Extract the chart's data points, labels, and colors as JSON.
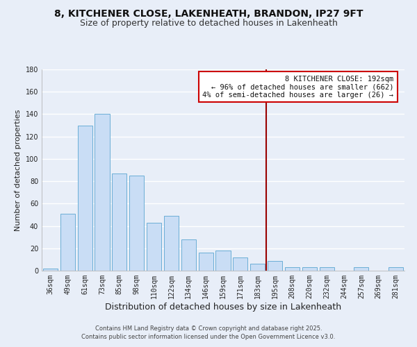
{
  "title": "8, KITCHENER CLOSE, LAKENHEATH, BRANDON, IP27 9FT",
  "subtitle": "Size of property relative to detached houses in Lakenheath",
  "xlabel": "Distribution of detached houses by size in Lakenheath",
  "ylabel": "Number of detached properties",
  "bar_labels": [
    "36sqm",
    "49sqm",
    "61sqm",
    "73sqm",
    "85sqm",
    "98sqm",
    "110sqm",
    "122sqm",
    "134sqm",
    "146sqm",
    "159sqm",
    "171sqm",
    "183sqm",
    "195sqm",
    "208sqm",
    "220sqm",
    "232sqm",
    "244sqm",
    "257sqm",
    "269sqm",
    "281sqm"
  ],
  "bar_values": [
    2,
    51,
    130,
    140,
    87,
    85,
    43,
    49,
    28,
    16,
    18,
    12,
    6,
    9,
    3,
    3,
    3,
    0,
    3,
    0,
    3
  ],
  "bar_color": "#c9ddf5",
  "bar_edge_color": "#6baed6",
  "background_color": "#e8eef8",
  "grid_color": "#ffffff",
  "vline_x_index": 13,
  "vline_color": "#990000",
  "annotation_title": "8 KITCHENER CLOSE: 192sqm",
  "annotation_line1": "← 96% of detached houses are smaller (662)",
  "annotation_line2": "4% of semi-detached houses are larger (26) →",
  "annotation_box_color": "#ffffff",
  "annotation_box_edge": "#cc0000",
  "footnote1": "Contains HM Land Registry data © Crown copyright and database right 2025.",
  "footnote2": "Contains public sector information licensed under the Open Government Licence v3.0.",
  "ylim": [
    0,
    180
  ],
  "yticks": [
    0,
    20,
    40,
    60,
    80,
    100,
    120,
    140,
    160,
    180
  ],
  "title_fontsize": 10,
  "subtitle_fontsize": 9,
  "ylabel_fontsize": 8,
  "xlabel_fontsize": 9,
  "tick_fontsize": 7,
  "footnote_fontsize": 6
}
